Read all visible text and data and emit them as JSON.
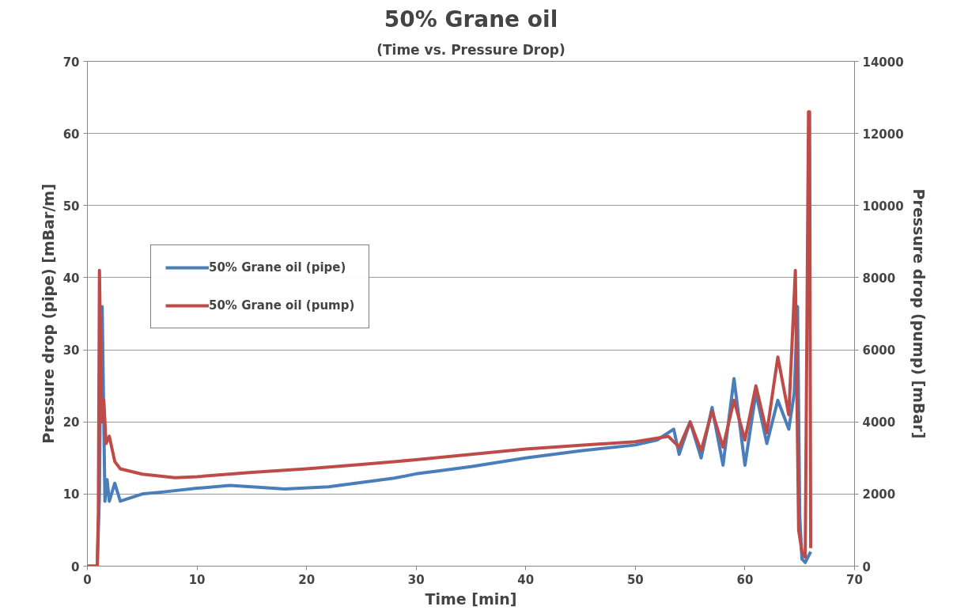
{
  "chart_data": {
    "type": "line",
    "title": "50% Grane oil",
    "subtitle": "(Time vs. Pressure Drop)",
    "xlabel": "Time [min]",
    "ylabel": "Pressure drop (pipe) [mBar/m]",
    "y2label": "Pressure drop (pump) [mBar]",
    "xlim": [
      0,
      70
    ],
    "xticks": [
      0,
      10,
      20,
      30,
      40,
      50,
      60,
      70
    ],
    "ylim": [
      0,
      70
    ],
    "yticks": [
      0,
      10,
      20,
      30,
      40,
      50,
      60,
      70
    ],
    "y2lim": [
      0,
      14000
    ],
    "y2ticks": [
      0,
      2000,
      4000,
      6000,
      8000,
      10000,
      12000,
      14000
    ],
    "grid": "y",
    "legend": "top left",
    "line_style": "solid",
    "marker": "none",
    "series": [
      {
        "name": "50% Grane oil (pipe)",
        "color": "#4a7ebb",
        "x": [
          0,
          0.5,
          0.9,
          1.0,
          1.1,
          1.2,
          1.35,
          1.5,
          1.6,
          1.8,
          2,
          2.5,
          3,
          4,
          5,
          7,
          10,
          13,
          15,
          18,
          22,
          25,
          28,
          30,
          32,
          35,
          40,
          45,
          50,
          52,
          53.5,
          54,
          55,
          56,
          57,
          58,
          59,
          60,
          61,
          62,
          63,
          64,
          64.5,
          64.8,
          65,
          65.2,
          65.5,
          66
        ],
        "values": [
          0,
          0,
          0,
          5,
          10,
          28,
          36,
          20,
          9,
          12,
          9,
          11.5,
          9,
          9.5,
          10,
          10.3,
          10.8,
          11.2,
          11,
          10.7,
          11,
          11.6,
          12.2,
          12.8,
          13.2,
          13.8,
          15,
          16,
          16.8,
          17.5,
          19,
          15.5,
          20,
          15,
          22,
          14,
          26,
          14,
          24,
          17,
          23,
          19,
          24,
          36,
          7,
          1,
          0.5,
          2
        ]
      },
      {
        "name": "50% Grane oil (pump)",
        "color": "#be4b48",
        "axis": "y2",
        "x": [
          0,
          0.9,
          1.0,
          1.1,
          1.3,
          1.5,
          1.7,
          2,
          2.5,
          3,
          5,
          8,
          10,
          15,
          20,
          25,
          30,
          35,
          40,
          45,
          50,
          53,
          54,
          55,
          56,
          57,
          58,
          59,
          60,
          61,
          62,
          63,
          64,
          64.6,
          64.9,
          65.2,
          65.5,
          65.8,
          65.9,
          66.0
        ],
        "values": [
          0,
          0,
          1500,
          8200,
          4000,
          4600,
          3400,
          3600,
          2900,
          2700,
          2550,
          2450,
          2480,
          2600,
          2700,
          2820,
          2950,
          3100,
          3250,
          3350,
          3450,
          3600,
          3300,
          4000,
          3200,
          4300,
          3300,
          4600,
          3500,
          5000,
          3700,
          5800,
          4200,
          8200,
          1000,
          400,
          250,
          12600,
          12600,
          500
        ]
      }
    ]
  }
}
